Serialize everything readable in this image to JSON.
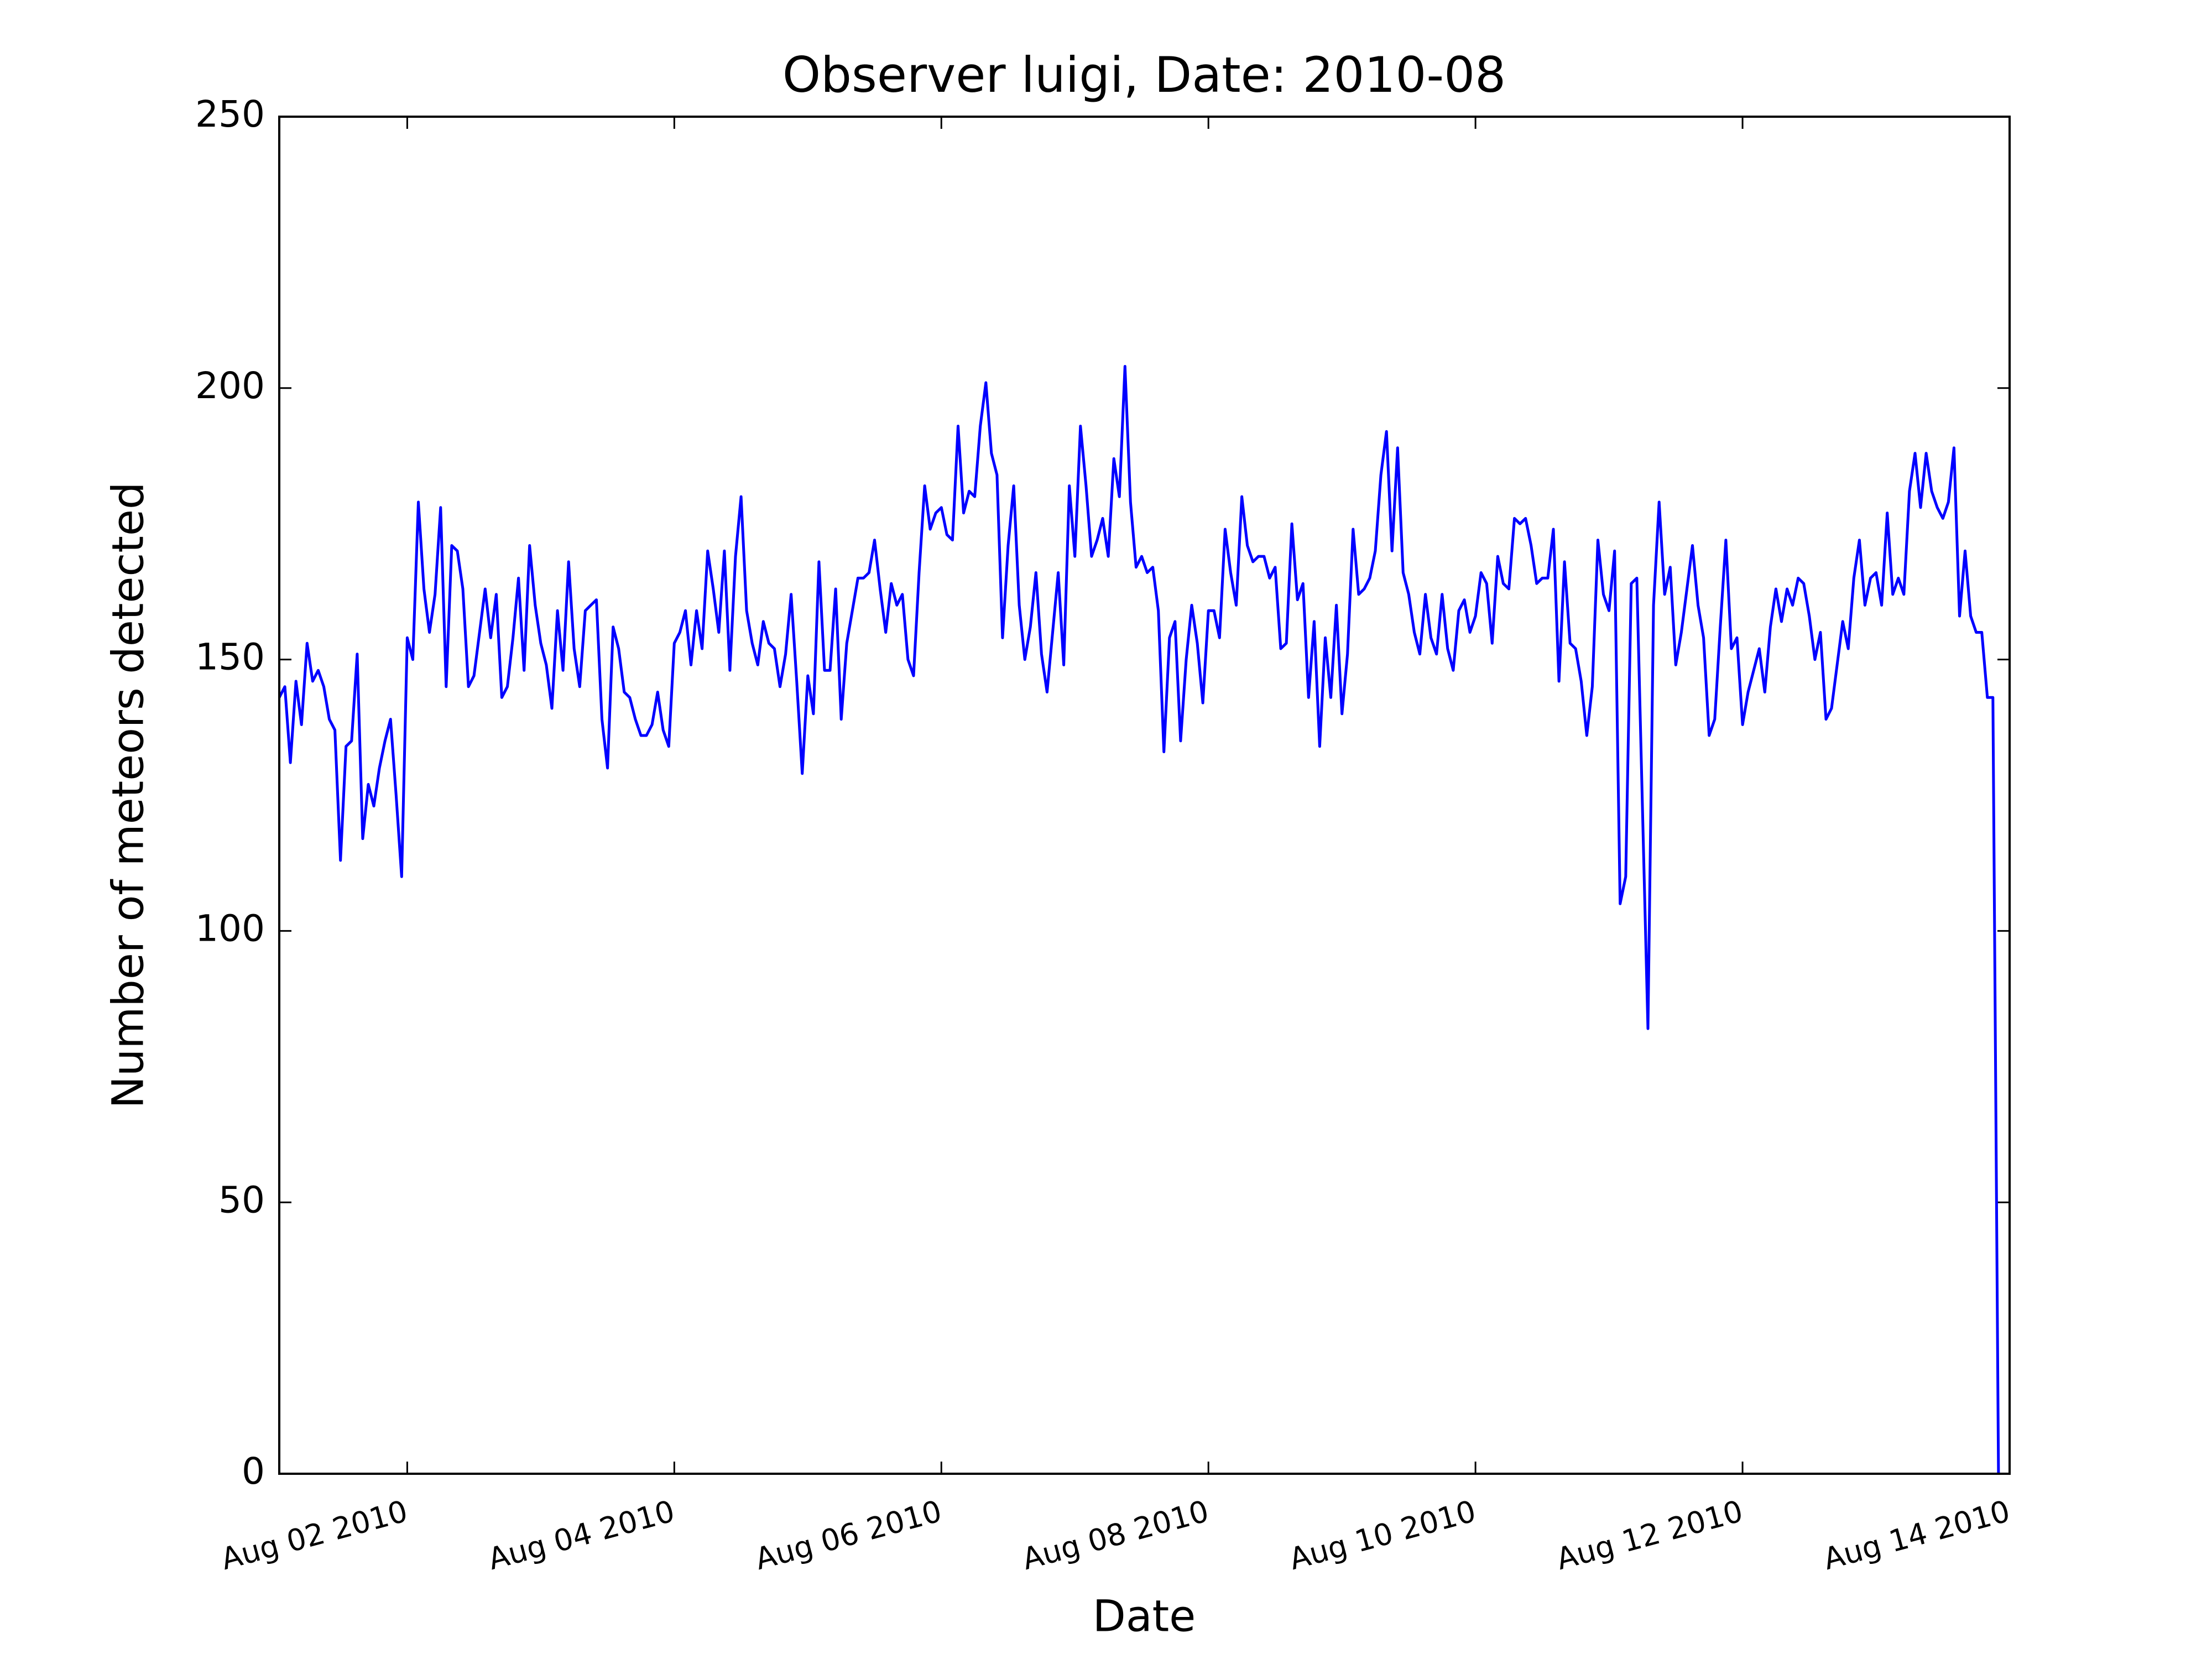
{
  "chart_data": {
    "type": "line",
    "title": "Observer luigi, Date: 2010-08",
    "xlabel": "Date",
    "ylabel": "Number of meteors detected",
    "color": "#0000ff",
    "xlim": [
      "2010-08-01T01:00",
      "2010-08-14T00:00"
    ],
    "xticks": [
      {
        "value": "2010-08-02T00:00",
        "label": "Aug 02 2010"
      },
      {
        "value": "2010-08-04T00:00",
        "label": "Aug 04 2010"
      },
      {
        "value": "2010-08-06T00:00",
        "label": "Aug 06 2010"
      },
      {
        "value": "2010-08-08T00:00",
        "label": "Aug 08 2010"
      },
      {
        "value": "2010-08-10T00:00",
        "label": "Aug 10 2010"
      },
      {
        "value": "2010-08-12T00:00",
        "label": "Aug 12 2010"
      },
      {
        "value": "2010-08-14T00:00",
        "label": "Aug 14 2010"
      }
    ],
    "ylim": [
      0,
      250
    ],
    "yticks": [
      0,
      50,
      100,
      150,
      200,
      250
    ],
    "x": [
      "2010-08-01T01:00",
      "2010-08-01T02:00",
      "2010-08-01T03:00",
      "2010-08-01T04:00",
      "2010-08-01T05:00",
      "2010-08-01T06:00",
      "2010-08-01T07:00",
      "2010-08-01T08:00",
      "2010-08-01T09:00",
      "2010-08-01T10:00",
      "2010-08-01T11:00",
      "2010-08-01T12:00",
      "2010-08-01T13:00",
      "2010-08-01T14:00",
      "2010-08-01T15:00",
      "2010-08-01T16:00",
      "2010-08-01T17:00",
      "2010-08-01T18:00",
      "2010-08-01T19:00",
      "2010-08-01T20:00",
      "2010-08-01T21:00",
      "2010-08-01T22:00",
      "2010-08-01T23:00",
      "2010-08-02T00:00",
      "2010-08-02T01:00",
      "2010-08-02T02:00",
      "2010-08-02T03:00",
      "2010-08-02T04:00",
      "2010-08-02T05:00",
      "2010-08-02T06:00",
      "2010-08-02T07:00",
      "2010-08-02T08:00",
      "2010-08-02T09:00",
      "2010-08-02T10:00",
      "2010-08-02T11:00",
      "2010-08-02T12:00",
      "2010-08-02T13:00",
      "2010-08-02T14:00",
      "2010-08-02T15:00",
      "2010-08-02T16:00",
      "2010-08-02T17:00",
      "2010-08-02T18:00",
      "2010-08-02T19:00",
      "2010-08-02T20:00",
      "2010-08-02T21:00",
      "2010-08-02T22:00",
      "2010-08-02T23:00",
      "2010-08-03T00:00",
      "2010-08-03T01:00",
      "2010-08-03T02:00",
      "2010-08-03T03:00",
      "2010-08-03T04:00",
      "2010-08-03T05:00",
      "2010-08-03T06:00",
      "2010-08-03T07:00",
      "2010-08-03T08:00",
      "2010-08-03T09:00",
      "2010-08-03T10:00",
      "2010-08-03T11:00",
      "2010-08-03T12:00",
      "2010-08-03T13:00",
      "2010-08-03T14:00",
      "2010-08-03T15:00",
      "2010-08-03T16:00",
      "2010-08-03T17:00",
      "2010-08-03T18:00",
      "2010-08-03T19:00",
      "2010-08-03T20:00",
      "2010-08-03T21:00",
      "2010-08-03T22:00",
      "2010-08-03T23:00",
      "2010-08-04T00:00",
      "2010-08-04T01:00",
      "2010-08-04T02:00",
      "2010-08-04T03:00",
      "2010-08-04T04:00",
      "2010-08-04T05:00",
      "2010-08-04T06:00",
      "2010-08-04T07:00",
      "2010-08-04T08:00",
      "2010-08-04T09:00",
      "2010-08-04T10:00",
      "2010-08-04T11:00",
      "2010-08-04T12:00",
      "2010-08-04T13:00",
      "2010-08-04T14:00",
      "2010-08-04T15:00",
      "2010-08-04T16:00",
      "2010-08-04T17:00",
      "2010-08-04T18:00",
      "2010-08-04T19:00",
      "2010-08-04T20:00",
      "2010-08-04T21:00",
      "2010-08-04T22:00",
      "2010-08-04T23:00",
      "2010-08-05T00:00",
      "2010-08-05T01:00",
      "2010-08-05T02:00",
      "2010-08-05T03:00",
      "2010-08-05T04:00",
      "2010-08-05T05:00",
      "2010-08-05T06:00",
      "2010-08-05T07:00",
      "2010-08-05T08:00",
      "2010-08-05T09:00",
      "2010-08-05T10:00",
      "2010-08-05T11:00",
      "2010-08-05T12:00",
      "2010-08-05T13:00",
      "2010-08-05T14:00",
      "2010-08-05T15:00",
      "2010-08-05T16:00",
      "2010-08-05T17:00",
      "2010-08-05T18:00",
      "2010-08-05T19:00",
      "2010-08-05T20:00",
      "2010-08-05T21:00",
      "2010-08-05T22:00",
      "2010-08-05T23:00",
      "2010-08-06T00:00",
      "2010-08-06T01:00",
      "2010-08-06T02:00",
      "2010-08-06T03:00",
      "2010-08-06T04:00",
      "2010-08-06T05:00",
      "2010-08-06T06:00",
      "2010-08-06T07:00",
      "2010-08-06T08:00",
      "2010-08-06T09:00",
      "2010-08-06T10:00",
      "2010-08-06T11:00",
      "2010-08-06T12:00",
      "2010-08-06T13:00",
      "2010-08-06T14:00",
      "2010-08-06T15:00",
      "2010-08-06T16:00",
      "2010-08-06T17:00",
      "2010-08-06T18:00",
      "2010-08-06T19:00",
      "2010-08-06T20:00",
      "2010-08-06T21:00",
      "2010-08-06T22:00",
      "2010-08-06T23:00",
      "2010-08-07T00:00",
      "2010-08-07T01:00",
      "2010-08-07T02:00",
      "2010-08-07T03:00",
      "2010-08-07T04:00",
      "2010-08-07T05:00",
      "2010-08-07T06:00",
      "2010-08-07T07:00",
      "2010-08-07T08:00",
      "2010-08-07T09:00",
      "2010-08-07T10:00",
      "2010-08-07T11:00",
      "2010-08-07T12:00",
      "2010-08-07T13:00",
      "2010-08-07T14:00",
      "2010-08-07T15:00",
      "2010-08-07T16:00",
      "2010-08-07T17:00",
      "2010-08-07T18:00",
      "2010-08-07T19:00",
      "2010-08-07T20:00",
      "2010-08-07T21:00",
      "2010-08-07T22:00",
      "2010-08-07T23:00",
      "2010-08-08T00:00",
      "2010-08-08T01:00",
      "2010-08-08T02:00",
      "2010-08-08T03:00",
      "2010-08-08T04:00",
      "2010-08-08T05:00",
      "2010-08-08T06:00",
      "2010-08-08T07:00",
      "2010-08-08T08:00",
      "2010-08-08T09:00",
      "2010-08-08T10:00",
      "2010-08-08T11:00",
      "2010-08-08T12:00",
      "2010-08-08T13:00",
      "2010-08-08T14:00",
      "2010-08-08T15:00",
      "2010-08-08T16:00",
      "2010-08-08T17:00",
      "2010-08-08T18:00",
      "2010-08-08T19:00",
      "2010-08-08T20:00",
      "2010-08-08T21:00",
      "2010-08-08T22:00",
      "2010-08-08T23:00",
      "2010-08-09T00:00",
      "2010-08-09T01:00",
      "2010-08-09T02:00",
      "2010-08-09T03:00",
      "2010-08-09T04:00",
      "2010-08-09T05:00",
      "2010-08-09T06:00",
      "2010-08-09T07:00",
      "2010-08-09T08:00",
      "2010-08-09T09:00",
      "2010-08-09T10:00",
      "2010-08-09T11:00",
      "2010-08-09T12:00",
      "2010-08-09T13:00",
      "2010-08-09T14:00",
      "2010-08-09T15:00",
      "2010-08-09T16:00",
      "2010-08-09T17:00",
      "2010-08-09T18:00",
      "2010-08-09T19:00",
      "2010-08-09T20:00",
      "2010-08-09T21:00",
      "2010-08-09T22:00",
      "2010-08-09T23:00",
      "2010-08-10T00:00",
      "2010-08-10T01:00",
      "2010-08-10T02:00",
      "2010-08-10T03:00",
      "2010-08-10T04:00",
      "2010-08-10T05:00",
      "2010-08-10T06:00",
      "2010-08-10T07:00",
      "2010-08-10T08:00",
      "2010-08-10T09:00",
      "2010-08-10T10:00",
      "2010-08-10T11:00",
      "2010-08-10T12:00",
      "2010-08-10T13:00",
      "2010-08-10T14:00",
      "2010-08-10T15:00",
      "2010-08-10T16:00",
      "2010-08-10T17:00",
      "2010-08-10T18:00",
      "2010-08-10T19:00",
      "2010-08-10T20:00",
      "2010-08-10T21:00",
      "2010-08-10T22:00",
      "2010-08-10T23:00",
      "2010-08-11T00:00",
      "2010-08-11T01:00",
      "2010-08-11T02:00",
      "2010-08-11T03:00",
      "2010-08-11T04:00",
      "2010-08-11T05:00",
      "2010-08-11T06:00",
      "2010-08-11T07:00",
      "2010-08-11T08:00",
      "2010-08-11T09:00",
      "2010-08-11T10:00",
      "2010-08-11T11:00",
      "2010-08-11T12:00",
      "2010-08-11T13:00",
      "2010-08-11T14:00",
      "2010-08-11T15:00",
      "2010-08-11T16:00",
      "2010-08-11T17:00",
      "2010-08-11T18:00",
      "2010-08-11T19:00",
      "2010-08-11T20:00",
      "2010-08-11T21:00",
      "2010-08-11T22:00",
      "2010-08-11T23:00",
      "2010-08-12T00:00",
      "2010-08-12T01:00",
      "2010-08-12T02:00",
      "2010-08-12T03:00",
      "2010-08-12T04:00",
      "2010-08-12T05:00",
      "2010-08-12T06:00",
      "2010-08-12T07:00",
      "2010-08-12T08:00",
      "2010-08-12T09:00",
      "2010-08-12T10:00",
      "2010-08-12T11:00",
      "2010-08-12T12:00",
      "2010-08-12T13:00",
      "2010-08-12T14:00",
      "2010-08-12T15:00",
      "2010-08-12T16:00",
      "2010-08-12T17:00",
      "2010-08-12T18:00",
      "2010-08-12T19:00",
      "2010-08-12T20:00",
      "2010-08-12T21:00",
      "2010-08-12T22:00",
      "2010-08-12T23:00",
      "2010-08-13T00:00",
      "2010-08-13T01:00",
      "2010-08-13T02:00",
      "2010-08-13T03:00",
      "2010-08-13T04:00",
      "2010-08-13T05:00",
      "2010-08-13T06:00",
      "2010-08-13T07:00",
      "2010-08-13T08:00",
      "2010-08-13T09:00",
      "2010-08-13T10:00",
      "2010-08-13T11:00",
      "2010-08-13T12:00",
      "2010-08-13T13:00",
      "2010-08-13T14:00",
      "2010-08-13T15:00",
      "2010-08-13T16:00",
      "2010-08-13T17:00",
      "2010-08-13T18:00",
      "2010-08-13T19:00",
      "2010-08-13T20:00",
      "2010-08-13T21:00",
      "2010-08-13T22:00"
    ],
    "values": [
      143,
      145,
      131,
      146,
      138,
      153,
      146,
      148,
      145,
      139,
      137,
      113,
      134,
      135,
      151,
      117,
      127,
      123,
      130,
      135,
      139,
      125,
      110,
      154,
      150,
      179,
      163,
      155,
      162,
      178,
      145,
      171,
      170,
      163,
      145,
      147,
      155,
      163,
      154,
      162,
      143,
      145,
      154,
      165,
      148,
      171,
      160,
      153,
      149,
      141,
      159,
      148,
      168,
      152,
      145,
      159,
      160,
      161,
      139,
      130,
      156,
      152,
      144,
      143,
      139,
      136,
      136,
      138,
      144,
      137,
      134,
      153,
      155,
      159,
      149,
      159,
      152,
      170,
      163,
      155,
      170,
      148,
      169,
      180,
      159,
      153,
      149,
      157,
      153,
      152,
      145,
      151,
      162,
      146,
      129,
      147,
      140,
      168,
      148,
      148,
      163,
      139,
      153,
      159,
      165,
      165,
      166,
      172,
      163,
      155,
      164,
      160,
      162,
      150,
      147,
      166,
      182,
      174,
      177,
      178,
      173,
      172,
      193,
      177,
      181,
      180,
      193,
      201,
      188,
      184,
      154,
      171,
      182,
      160,
      150,
      156,
      166,
      151,
      144,
      155,
      166,
      149,
      182,
      169,
      193,
      182,
      169,
      172,
      176,
      169,
      187,
      180,
      204,
      179,
      167,
      169,
      166,
      167,
      159,
      133,
      154,
      157,
      135,
      150,
      160,
      153,
      142,
      159,
      159,
      154,
      174,
      166,
      160,
      180,
      171,
      168,
      169,
      169,
      165,
      167,
      152,
      153,
      175,
      161,
      164,
      143,
      157,
      134,
      154,
      143,
      160,
      140,
      151,
      174,
      162,
      163,
      165,
      170,
      184,
      192,
      170,
      189,
      166,
      162,
      155,
      151,
      162,
      154,
      151,
      162,
      152,
      148,
      159,
      161,
      155,
      158,
      166,
      164,
      153,
      169,
      164,
      163,
      176,
      175,
      176,
      171,
      164,
      165,
      165,
      174,
      146,
      168,
      153,
      152,
      146,
      136,
      145,
      172,
      162,
      159,
      170,
      105,
      110,
      164,
      165,
      123,
      82,
      160,
      179,
      162,
      167,
      149,
      155,
      163,
      171,
      160,
      154,
      136,
      139,
      156,
      172,
      152,
      154,
      138,
      144,
      148,
      152,
      144,
      156,
      163,
      157,
      163,
      160,
      165,
      164,
      158,
      150,
      155,
      139,
      141,
      149,
      157,
      152,
      165,
      172,
      160,
      165,
      166,
      160,
      177,
      162,
      165,
      162,
      181,
      188,
      178,
      188,
      181,
      178,
      176,
      179,
      189,
      158,
      170,
      158,
      155,
      155,
      143,
      143,
      0
    ]
  }
}
